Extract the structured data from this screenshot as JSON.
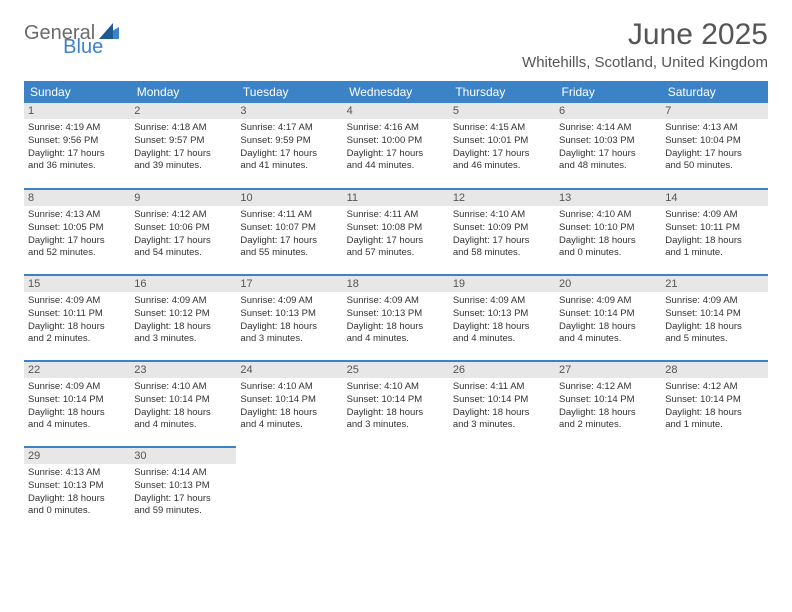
{
  "logo": {
    "part1": "General",
    "part2": "Blue"
  },
  "title": "June 2025",
  "subtitle": "Whitehills, Scotland, United Kingdom",
  "colors": {
    "brand_blue": "#3b82c7",
    "header_gray": "#e7e7e7",
    "text": "#333333"
  },
  "weekdays": [
    "Sunday",
    "Monday",
    "Tuesday",
    "Wednesday",
    "Thursday",
    "Friday",
    "Saturday"
  ],
  "weeks": [
    [
      {
        "n": "1",
        "sr": "Sunrise: 4:19 AM",
        "ss": "Sunset: 9:56 PM",
        "d1": "Daylight: 17 hours",
        "d2": "and 36 minutes."
      },
      {
        "n": "2",
        "sr": "Sunrise: 4:18 AM",
        "ss": "Sunset: 9:57 PM",
        "d1": "Daylight: 17 hours",
        "d2": "and 39 minutes."
      },
      {
        "n": "3",
        "sr": "Sunrise: 4:17 AM",
        "ss": "Sunset: 9:59 PM",
        "d1": "Daylight: 17 hours",
        "d2": "and 41 minutes."
      },
      {
        "n": "4",
        "sr": "Sunrise: 4:16 AM",
        "ss": "Sunset: 10:00 PM",
        "d1": "Daylight: 17 hours",
        "d2": "and 44 minutes."
      },
      {
        "n": "5",
        "sr": "Sunrise: 4:15 AM",
        "ss": "Sunset: 10:01 PM",
        "d1": "Daylight: 17 hours",
        "d2": "and 46 minutes."
      },
      {
        "n": "6",
        "sr": "Sunrise: 4:14 AM",
        "ss": "Sunset: 10:03 PM",
        "d1": "Daylight: 17 hours",
        "d2": "and 48 minutes."
      },
      {
        "n": "7",
        "sr": "Sunrise: 4:13 AM",
        "ss": "Sunset: 10:04 PM",
        "d1": "Daylight: 17 hours",
        "d2": "and 50 minutes."
      }
    ],
    [
      {
        "n": "8",
        "sr": "Sunrise: 4:13 AM",
        "ss": "Sunset: 10:05 PM",
        "d1": "Daylight: 17 hours",
        "d2": "and 52 minutes."
      },
      {
        "n": "9",
        "sr": "Sunrise: 4:12 AM",
        "ss": "Sunset: 10:06 PM",
        "d1": "Daylight: 17 hours",
        "d2": "and 54 minutes."
      },
      {
        "n": "10",
        "sr": "Sunrise: 4:11 AM",
        "ss": "Sunset: 10:07 PM",
        "d1": "Daylight: 17 hours",
        "d2": "and 55 minutes."
      },
      {
        "n": "11",
        "sr": "Sunrise: 4:11 AM",
        "ss": "Sunset: 10:08 PM",
        "d1": "Daylight: 17 hours",
        "d2": "and 57 minutes."
      },
      {
        "n": "12",
        "sr": "Sunrise: 4:10 AM",
        "ss": "Sunset: 10:09 PM",
        "d1": "Daylight: 17 hours",
        "d2": "and 58 minutes."
      },
      {
        "n": "13",
        "sr": "Sunrise: 4:10 AM",
        "ss": "Sunset: 10:10 PM",
        "d1": "Daylight: 18 hours",
        "d2": "and 0 minutes."
      },
      {
        "n": "14",
        "sr": "Sunrise: 4:09 AM",
        "ss": "Sunset: 10:11 PM",
        "d1": "Daylight: 18 hours",
        "d2": "and 1 minute."
      }
    ],
    [
      {
        "n": "15",
        "sr": "Sunrise: 4:09 AM",
        "ss": "Sunset: 10:11 PM",
        "d1": "Daylight: 18 hours",
        "d2": "and 2 minutes."
      },
      {
        "n": "16",
        "sr": "Sunrise: 4:09 AM",
        "ss": "Sunset: 10:12 PM",
        "d1": "Daylight: 18 hours",
        "d2": "and 3 minutes."
      },
      {
        "n": "17",
        "sr": "Sunrise: 4:09 AM",
        "ss": "Sunset: 10:13 PM",
        "d1": "Daylight: 18 hours",
        "d2": "and 3 minutes."
      },
      {
        "n": "18",
        "sr": "Sunrise: 4:09 AM",
        "ss": "Sunset: 10:13 PM",
        "d1": "Daylight: 18 hours",
        "d2": "and 4 minutes."
      },
      {
        "n": "19",
        "sr": "Sunrise: 4:09 AM",
        "ss": "Sunset: 10:13 PM",
        "d1": "Daylight: 18 hours",
        "d2": "and 4 minutes."
      },
      {
        "n": "20",
        "sr": "Sunrise: 4:09 AM",
        "ss": "Sunset: 10:14 PM",
        "d1": "Daylight: 18 hours",
        "d2": "and 4 minutes."
      },
      {
        "n": "21",
        "sr": "Sunrise: 4:09 AM",
        "ss": "Sunset: 10:14 PM",
        "d1": "Daylight: 18 hours",
        "d2": "and 5 minutes."
      }
    ],
    [
      {
        "n": "22",
        "sr": "Sunrise: 4:09 AM",
        "ss": "Sunset: 10:14 PM",
        "d1": "Daylight: 18 hours",
        "d2": "and 4 minutes."
      },
      {
        "n": "23",
        "sr": "Sunrise: 4:10 AM",
        "ss": "Sunset: 10:14 PM",
        "d1": "Daylight: 18 hours",
        "d2": "and 4 minutes."
      },
      {
        "n": "24",
        "sr": "Sunrise: 4:10 AM",
        "ss": "Sunset: 10:14 PM",
        "d1": "Daylight: 18 hours",
        "d2": "and 4 minutes."
      },
      {
        "n": "25",
        "sr": "Sunrise: 4:10 AM",
        "ss": "Sunset: 10:14 PM",
        "d1": "Daylight: 18 hours",
        "d2": "and 3 minutes."
      },
      {
        "n": "26",
        "sr": "Sunrise: 4:11 AM",
        "ss": "Sunset: 10:14 PM",
        "d1": "Daylight: 18 hours",
        "d2": "and 3 minutes."
      },
      {
        "n": "27",
        "sr": "Sunrise: 4:12 AM",
        "ss": "Sunset: 10:14 PM",
        "d1": "Daylight: 18 hours",
        "d2": "and 2 minutes."
      },
      {
        "n": "28",
        "sr": "Sunrise: 4:12 AM",
        "ss": "Sunset: 10:14 PM",
        "d1": "Daylight: 18 hours",
        "d2": "and 1 minute."
      }
    ],
    [
      {
        "n": "29",
        "sr": "Sunrise: 4:13 AM",
        "ss": "Sunset: 10:13 PM",
        "d1": "Daylight: 18 hours",
        "d2": "and 0 minutes."
      },
      {
        "n": "30",
        "sr": "Sunrise: 4:14 AM",
        "ss": "Sunset: 10:13 PM",
        "d1": "Daylight: 17 hours",
        "d2": "and 59 minutes."
      },
      null,
      null,
      null,
      null,
      null
    ]
  ]
}
